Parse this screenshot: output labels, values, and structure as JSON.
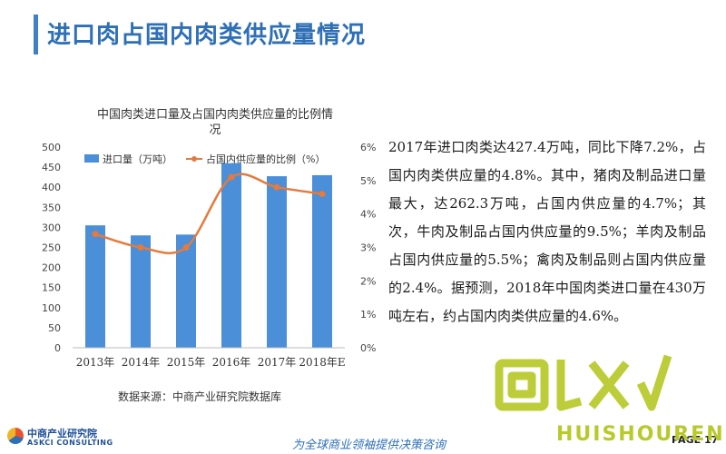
{
  "page": {
    "title": "进口肉占国内肉类供应量情况",
    "source": "数据来源：中商产业研究院数据库",
    "description": "2017年进口肉类达427.4万吨，同比下降7.2%，占国内肉类供应量的4.8%。其中，猪肉及制品进口量最大，达262.3万吨，占国内供应量的4.7%；其次，牛肉及制品占国内供应量的9.5%；羊肉及制品占国内供应量的5.5%；禽肉及制品则占国内供应量的2.4%。据预测，2018年中国肉类进口量在430万吨左右，约占国内肉类供应量的4.6%。",
    "slogan": "为全球商业领袖提供决策咨询",
    "page_label": "PAGE 17"
  },
  "logo": {
    "cn": "中商产业研究院",
    "en": "ASKCI CONSULTING"
  },
  "watermark": {
    "text": "HUISHOUREN",
    "mark": "回收"
  },
  "colors": {
    "accent": "#2e6fb6",
    "bar": "#4a8fd8",
    "line": "#e57a3c",
    "watermark": "#b8c92a"
  },
  "chart_data": {
    "type": "bar",
    "title": "中国肉类进口量及占国内肉类供应量的比例情况",
    "categories": [
      "2013年",
      "2014年",
      "2015年",
      "2016年",
      "2017年",
      "2018年E"
    ],
    "series": [
      {
        "name": "进口量（万吨）",
        "type": "bar",
        "axis": "left",
        "values": [
          305,
          280,
          282,
          460,
          427.4,
          430
        ]
      },
      {
        "name": "占国内供应量的比例（%）",
        "type": "line",
        "axis": "right",
        "values": [
          3.4,
          3.0,
          3.0,
          5.1,
          4.8,
          4.6
        ]
      }
    ],
    "y_left": {
      "min": 0,
      "max": 500,
      "ticks": [
        "0",
        "50",
        "100",
        "150",
        "200",
        "250",
        "300",
        "350",
        "400",
        "450",
        "500"
      ]
    },
    "y_right": {
      "min": 0,
      "max": 6,
      "ticks": [
        "0%",
        "1%",
        "2%",
        "3%",
        "4%",
        "5%",
        "6%"
      ]
    },
    "legend_position": "top",
    "grid": false
  }
}
